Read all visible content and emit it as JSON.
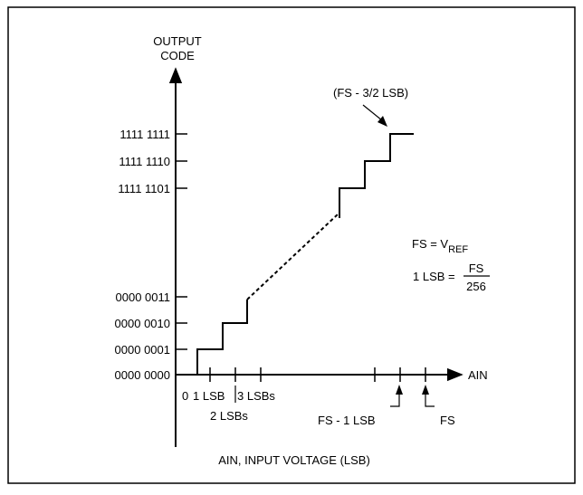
{
  "chart_data": {
    "type": "line",
    "title": "",
    "ylabel": [
      "OUTPUT",
      "CODE"
    ],
    "xlabel": "AIN, INPUT VOLTAGE (LSB)",
    "x_axis_end_label": "AIN",
    "y_ticks": [
      "0000 0000",
      "0000 0001",
      "0000 0010",
      "0000 0011",
      "1111 1101",
      "1111 1110",
      "1111 1111"
    ],
    "x_ticks": {
      "zero": "0",
      "one_lsb": "1 LSB",
      "two_lsbs": "2 LSBs",
      "three_lsbs": "3 LSBs",
      "fs_minus_one": "FS - 1 LSB",
      "fs": "FS"
    },
    "annotations": {
      "top_transition": "(FS - 3/2 LSB)",
      "fs_eq_lhs": "FS = V",
      "fs_eq_sub": "REF",
      "lsb_eq_lhs": "1 LSB =",
      "lsb_eq_num": "FS",
      "lsb_eq_den": "256"
    },
    "series": [
      {
        "segments": [
          {
            "style": "solid",
            "points": [
              [
                0.5,
                0
              ],
              [
                0.5,
                1
              ],
              [
                1.5,
                1
              ],
              [
                1.5,
                2
              ],
              [
                2.5,
                2
              ],
              [
                2.5,
                3
              ]
            ]
          },
          {
            "style": "dashed",
            "points": [
              [
                2.5,
                3
              ],
              [
                252.5,
                252
              ]
            ]
          },
          {
            "style": "solid",
            "points": [
              [
                252.5,
                252
              ],
              [
                252.5,
                253
              ],
              [
                253.5,
                253
              ],
              [
                253.5,
                254
              ],
              [
                254.5,
                254
              ],
              [
                254.5,
                255
              ],
              [
                255.5,
                255
              ]
            ]
          }
        ]
      }
    ]
  }
}
